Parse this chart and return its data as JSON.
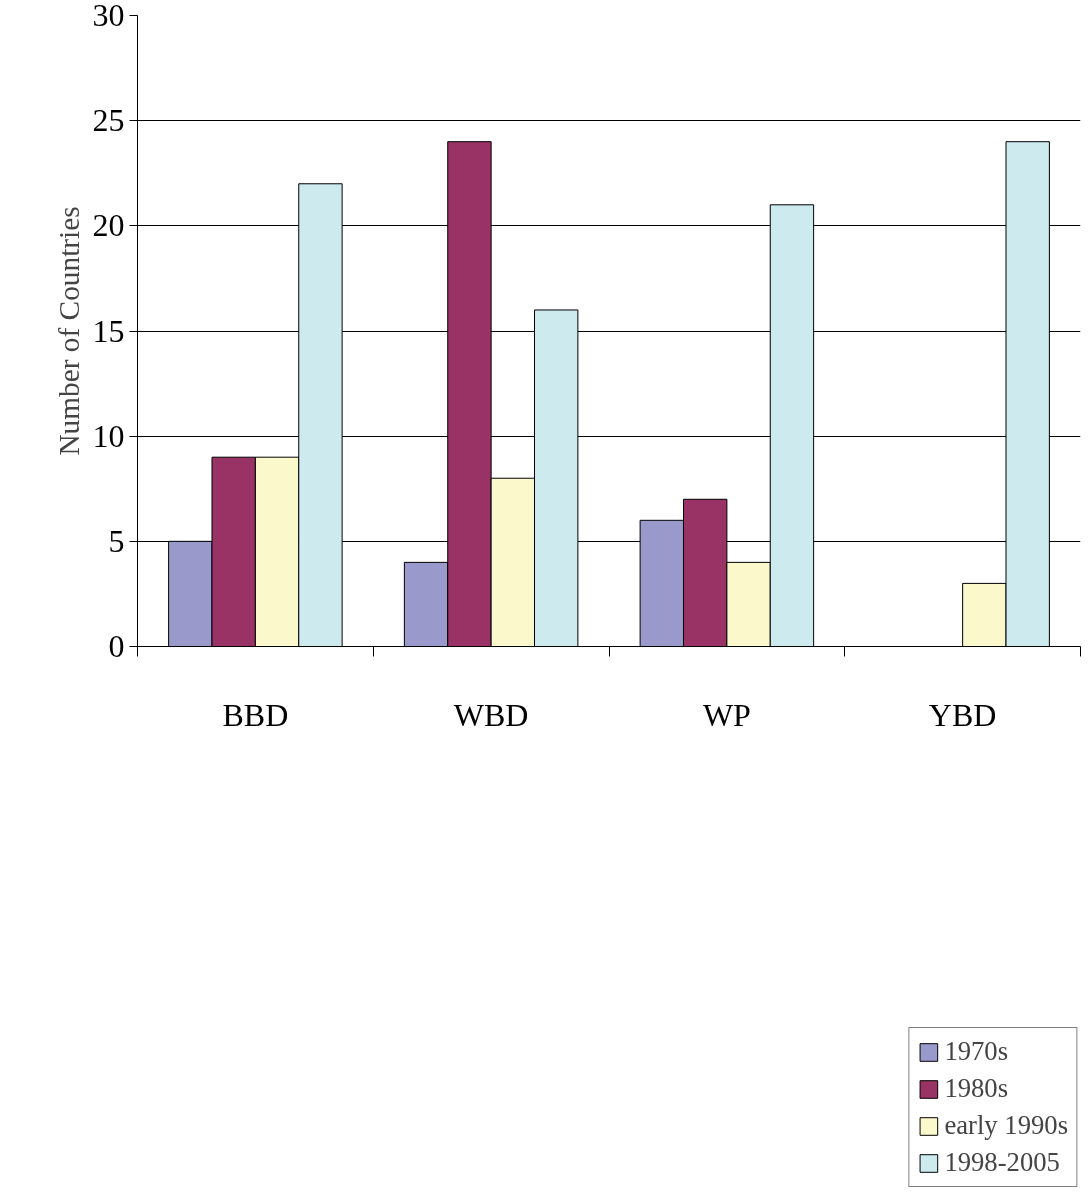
{
  "chart_data": {
    "type": "bar",
    "ylabel": "Number of Countries",
    "categories": [
      "BBD",
      "WBD",
      "WP",
      "YBD"
    ],
    "series": [
      {
        "name": "1970s",
        "color": "#9999cc",
        "values": [
          5,
          4,
          6,
          null
        ]
      },
      {
        "name": "1980s",
        "color": "#993366",
        "values": [
          9,
          24,
          7,
          null
        ]
      },
      {
        "name": "early 1990s",
        "color": "#fbf8cc",
        "values": [
          9,
          8,
          4,
          3
        ]
      },
      {
        "name": "1998-2005",
        "color": "#cdeaee",
        "values": [
          22,
          16,
          21,
          24
        ]
      }
    ],
    "ylim": [
      0,
      30
    ],
    "yticks": [
      0,
      5,
      10,
      15,
      20,
      25,
      30
    ],
    "grid": "y",
    "legend": "bottom right"
  }
}
